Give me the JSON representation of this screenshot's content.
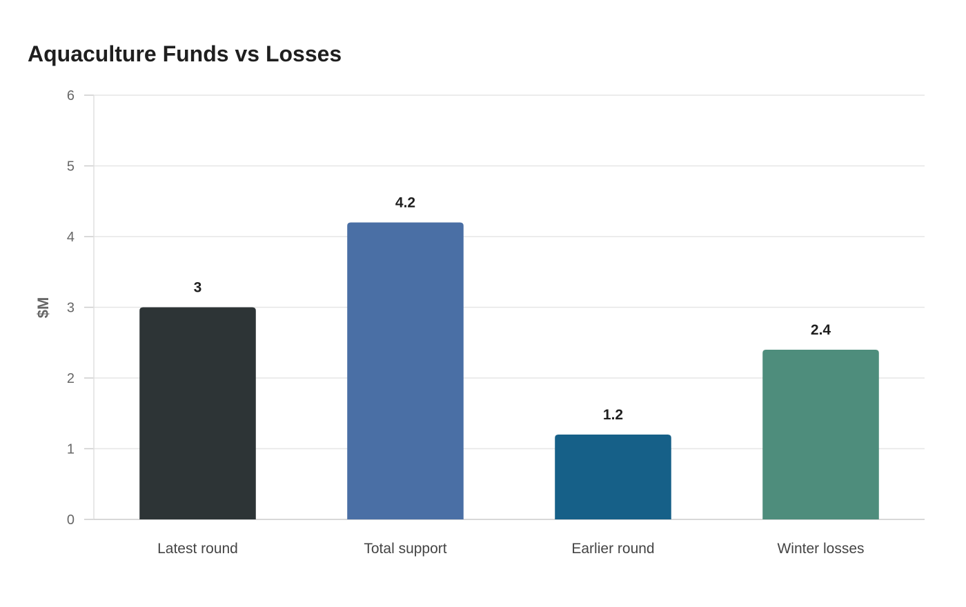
{
  "chart_data": {
    "type": "bar",
    "title": "Aquaculture Funds vs Losses",
    "xlabel": "",
    "ylabel": "$M",
    "categories": [
      "Latest round",
      "Total support",
      "Earlier round",
      "Winter losses"
    ],
    "values": [
      3,
      4.2,
      1.2,
      2.4
    ],
    "data_labels": [
      "3",
      "4.2",
      "1.2",
      "2.4"
    ],
    "colors": [
      "#2d3436",
      "#4a6fa5",
      "#166088",
      "#4e8d7c"
    ],
    "ylim": [
      0,
      6
    ],
    "yticks": [
      0,
      1,
      2,
      3,
      4,
      5,
      6
    ],
    "ytick_labels": [
      "0",
      "1",
      "2",
      "3",
      "4",
      "5",
      "6"
    ],
    "grid": true,
    "legend": "none"
  }
}
